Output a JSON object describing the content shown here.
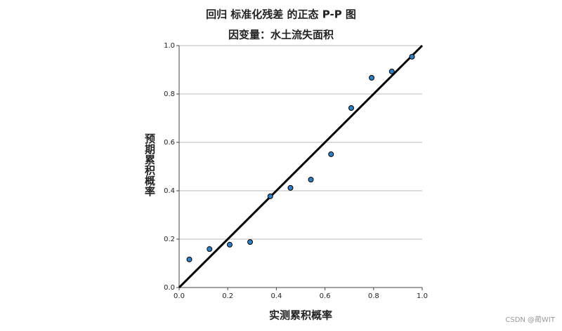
{
  "chart_data": {
    "type": "scatter",
    "title": "回归 标准化残差 的正态 P-P 图",
    "subtitle": "因变量：水土流失面积",
    "x_label": "实测累积概率",
    "y_label": "预期累积概率",
    "watermark": "CSDN @蔺WIT",
    "color": "#2f7fc1",
    "line_color": "#000000",
    "grid": true,
    "xlim": [
      0,
      1
    ],
    "ylim": [
      0,
      1
    ],
    "xticks": [
      {
        "value": 0,
        "label": "0.0"
      },
      0.2,
      0.4,
      0.6,
      0.8,
      {
        "value": 1,
        "label": "1.0"
      }
    ],
    "yticks": [
      {
        "value": 0,
        "label": "0.0"
      },
      0.2,
      0.4,
      0.6,
      0.8,
      {
        "value": 1,
        "label": "1.0"
      }
    ],
    "x": [
      0.042,
      0.125,
      0.208,
      0.292,
      0.375,
      0.458,
      0.542,
      0.625,
      0.708,
      0.792,
      0.875,
      0.958
    ],
    "values": [
      0.116,
      0.159,
      0.177,
      0.188,
      0.377,
      0.412,
      0.446,
      0.551,
      0.742,
      0.867,
      0.893,
      0.954
    ]
  }
}
